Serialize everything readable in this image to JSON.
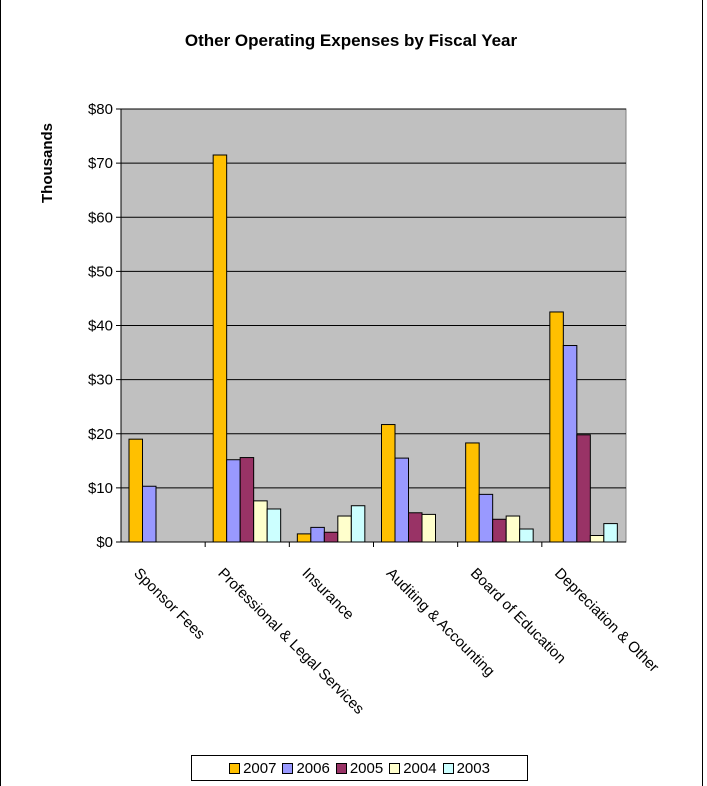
{
  "chart_data": {
    "type": "bar",
    "title": "Other Operating Expenses by Fiscal Year",
    "ylabel": "Thousands",
    "xlabel": "",
    "ylim": [
      0,
      80
    ],
    "ytick_step": 10,
    "ytick_labels": [
      "$0",
      "$10",
      "$20",
      "$30",
      "$40",
      "$50",
      "$60",
      "$70",
      "$80"
    ],
    "grid": true,
    "legend_position": "bottom",
    "plot_background": "#c0c0c0",
    "categories": [
      "Sponsor Fees",
      "Professional & Legal Services",
      "Insurance",
      "Auditing & Accounting",
      "Board of Education",
      "Depreciation & Other"
    ],
    "series": [
      {
        "name": "2007",
        "color": "#ffc000",
        "values": [
          19.0,
          71.5,
          1.5,
          21.7,
          18.3,
          42.5
        ]
      },
      {
        "name": "2006",
        "color": "#9999ff",
        "values": [
          10.3,
          15.2,
          2.7,
          15.5,
          8.8,
          36.3
        ]
      },
      {
        "name": "2005",
        "color": "#993366",
        "values": [
          0,
          15.6,
          1.8,
          5.4,
          4.2,
          19.8
        ]
      },
      {
        "name": "2004",
        "color": "#ffffcc",
        "values": [
          0,
          7.6,
          4.8,
          5.1,
          4.8,
          1.2
        ]
      },
      {
        "name": "2003",
        "color": "#ccffff",
        "values": [
          0,
          6.1,
          6.7,
          0,
          2.4,
          3.4
        ]
      }
    ]
  }
}
